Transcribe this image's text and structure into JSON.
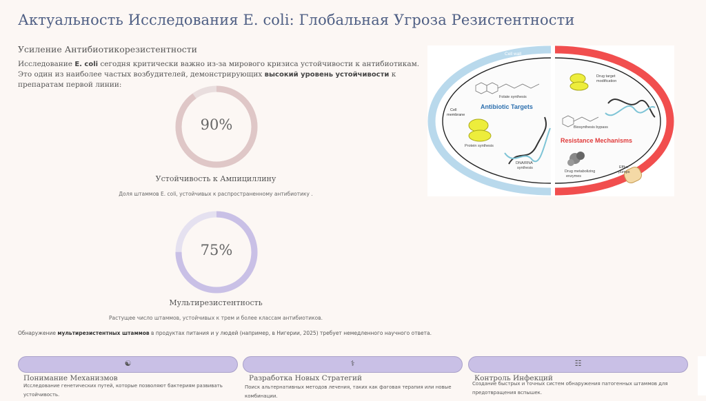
{
  "page": {
    "title": "Актуальность Исследования E. coli: Глобальная Угроза Резистентности"
  },
  "section": {
    "subtitle": "Усиление Антибиотикорезистентности",
    "intro_part1": "Исследование ",
    "intro_ecoli": "E. coli",
    "intro_part2": " сегодня критически важно из-за мирового кризиса устойчивости к антибиотикам. Это один из наиболее частых возбудителей, демонстрирующих ",
    "intro_bold": "высокий уровень устойчивости",
    "intro_part3": " к препаратам первой линии:"
  },
  "stats": [
    {
      "value": "90%",
      "fraction": 0.9,
      "label": "Устойчивость к Ампициллину",
      "description": "Доля штаммов E. coli, устойчивых к распространенному антибиотику ."
    },
    {
      "value": "75%",
      "fraction": 0.75,
      "label": "Мультирезистентность",
      "description": "Растущее число штаммов, устойчивых к трем и более классам антибиотиков."
    }
  ],
  "note": {
    "part1": "Обнаружение ",
    "bold": "мультирезистентных штаммов",
    "part2": " в продуктах питания и у людей (например, в Нигерии, 2025) требует немедленного научного ответа."
  },
  "figure": {
    "cell_wall": "Cell wall",
    "cell_membrane_1": "Cell",
    "cell_membrane_2": "membrane",
    "antibiotic_targets": "Antibiotic Targets",
    "folate": "Folate synthesis",
    "protein": "Protein synthesis",
    "dna_1": "DNA/RNA",
    "dna_2": "synthesis",
    "drug_target_1": "Drug target",
    "drug_target_2": "modification",
    "bypass": "Biosynthesis bypass",
    "resistance": "Resistance Mechanisms",
    "enzymes_1": "Drug metabolizing",
    "enzymes_2": "enzymes",
    "efflux_1": "Efflux",
    "efflux_2": "pumps"
  },
  "cards": [
    {
      "icon": "dna-icon",
      "title": "Понимание Механизмов",
      "description": "Исследование генетических путей, которые позволяют бактериям развивать устойчивость."
    },
    {
      "icon": "bacteria-icon",
      "title": "Разработка Новых Стратегий",
      "description": "Поиск альтернативных методов лечения, таких как фаговая терапия или новые комбинации."
    },
    {
      "icon": "checklist-icon",
      "title": "Контроль Инфекций",
      "description": "Создание быстрых и точных систем обнаружения патогенных штаммов для предотвращения вспышек."
    }
  ],
  "colors": {
    "title": "#4f5f84",
    "ring1": "#dfc7c7",
    "ring1_track": "#e9dede",
    "ring2": "#c9c0e6",
    "ring2_track": "#e5e1f0",
    "pill": "#c9c0e6",
    "wall_blue": "#b9d9ec",
    "wall_red": "#ef3b3b"
  }
}
